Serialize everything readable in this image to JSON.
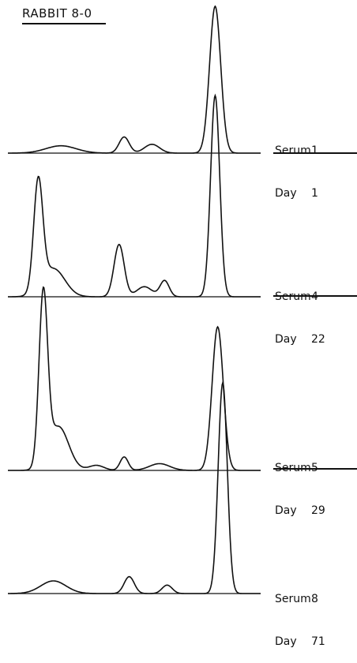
{
  "chart_data": {
    "type": "line",
    "title": "RABBIT 8-0",
    "xlabel": "",
    "ylabel": "",
    "grid": false,
    "series": [
      {
        "serum_label": "Serum",
        "serum_no": "1",
        "day_label": "Day",
        "day_no": "1",
        "peaks": [
          {
            "x": 0.21,
            "h": 0.05,
            "w": 0.06
          },
          {
            "x": 0.46,
            "h": 0.11,
            "w": 0.02
          },
          {
            "x": 0.57,
            "h": 0.06,
            "w": 0.03
          },
          {
            "x": 0.82,
            "h": 1.0,
            "w": 0.022
          }
        ]
      },
      {
        "serum_label": "Serum",
        "serum_no": "4",
        "day_label": "Day",
        "day_no": "22",
        "peaks": [
          {
            "x": 0.12,
            "h": 0.54,
            "w": 0.018
          },
          {
            "x": 0.18,
            "h": 0.14,
            "w": 0.045
          },
          {
            "x": 0.44,
            "h": 0.26,
            "w": 0.02
          },
          {
            "x": 0.54,
            "h": 0.05,
            "w": 0.03
          },
          {
            "x": 0.62,
            "h": 0.08,
            "w": 0.018
          },
          {
            "x": 0.82,
            "h": 1.0,
            "w": 0.018
          }
        ]
      },
      {
        "serum_label": "Serum",
        "serum_no": "5",
        "day_label": "Day",
        "day_no": "29",
        "peaks": [
          {
            "x": 0.14,
            "h": 1.0,
            "w": 0.017
          },
          {
            "x": 0.2,
            "h": 0.26,
            "w": 0.04
          },
          {
            "x": 0.35,
            "h": 0.03,
            "w": 0.03
          },
          {
            "x": 0.46,
            "h": 0.08,
            "w": 0.016
          },
          {
            "x": 0.6,
            "h": 0.04,
            "w": 0.04
          },
          {
            "x": 0.83,
            "h": 0.85,
            "w": 0.022
          }
        ]
      },
      {
        "serum_label": "Serum",
        "serum_no": "8",
        "day_label": "Day",
        "day_no": "71",
        "peaks": [
          {
            "x": 0.18,
            "h": 0.06,
            "w": 0.05
          },
          {
            "x": 0.48,
            "h": 0.08,
            "w": 0.02
          },
          {
            "x": 0.63,
            "h": 0.04,
            "w": 0.02
          },
          {
            "x": 0.85,
            "h": 1.0,
            "w": 0.018
          }
        ]
      }
    ]
  }
}
